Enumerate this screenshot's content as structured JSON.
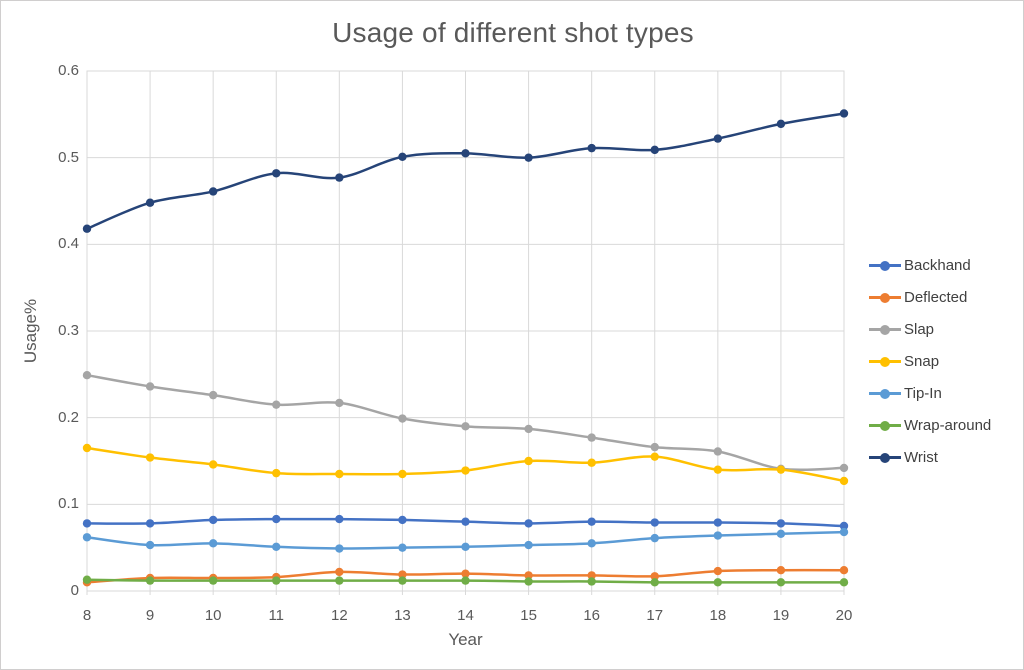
{
  "chart": {
    "title": "Usage of different shot types",
    "xlabel": "Year",
    "ylabel": "Usage%"
  },
  "chart_data": {
    "type": "line",
    "title": "Usage of different shot types",
    "xlabel": "Year",
    "ylabel": "Usage%",
    "x": [
      8,
      9,
      10,
      11,
      12,
      13,
      14,
      15,
      16,
      17,
      18,
      19,
      20
    ],
    "xtick_labels": [
      "8",
      "9",
      "10",
      "11",
      "12",
      "13",
      "14",
      "15",
      "16",
      "17",
      "18",
      "19",
      "20"
    ],
    "ylim": [
      0,
      0.6
    ],
    "ytick_labels": [
      "0",
      "0.1",
      "0.2",
      "0.3",
      "0.4",
      "0.5",
      "0.6"
    ],
    "yticks": [
      0,
      0.1,
      0.2,
      0.3,
      0.4,
      0.5,
      0.6
    ],
    "grid": true,
    "smooth_lines": true,
    "legend_position": "right",
    "grid_color": "#d9d9d9",
    "text_color": "#595959",
    "series": [
      {
        "name": "Backhand",
        "color": "#4472C4",
        "values": [
          0.078,
          0.078,
          0.082,
          0.083,
          0.083,
          0.082,
          0.08,
          0.078,
          0.08,
          0.079,
          0.079,
          0.078,
          0.075
        ]
      },
      {
        "name": "Deflected",
        "color": "#ED7D31",
        "values": [
          0.01,
          0.015,
          0.015,
          0.016,
          0.022,
          0.019,
          0.02,
          0.018,
          0.018,
          0.017,
          0.023,
          0.024,
          0.024
        ]
      },
      {
        "name": "Slap",
        "color": "#A5A5A5",
        "values": [
          0.249,
          0.236,
          0.226,
          0.215,
          0.217,
          0.199,
          0.19,
          0.187,
          0.177,
          0.166,
          0.161,
          0.141,
          0.142
        ]
      },
      {
        "name": "Snap",
        "color": "#FFC000",
        "values": [
          0.165,
          0.154,
          0.146,
          0.136,
          0.135,
          0.135,
          0.139,
          0.15,
          0.148,
          0.155,
          0.14,
          0.14,
          0.127
        ]
      },
      {
        "name": "Tip-In",
        "color": "#5B9BD5",
        "values": [
          0.062,
          0.053,
          0.055,
          0.051,
          0.049,
          0.05,
          0.051,
          0.053,
          0.055,
          0.061,
          0.064,
          0.066,
          0.068
        ]
      },
      {
        "name": "Wrap-around",
        "color": "#70AD47",
        "values": [
          0.013,
          0.012,
          0.012,
          0.012,
          0.012,
          0.012,
          0.012,
          0.011,
          0.011,
          0.01,
          0.01,
          0.01,
          0.01
        ]
      },
      {
        "name": "Wrist",
        "color": "#264478",
        "values": [
          0.418,
          0.448,
          0.461,
          0.482,
          0.477,
          0.501,
          0.505,
          0.5,
          0.511,
          0.509,
          0.522,
          0.539,
          0.551
        ]
      }
    ]
  }
}
